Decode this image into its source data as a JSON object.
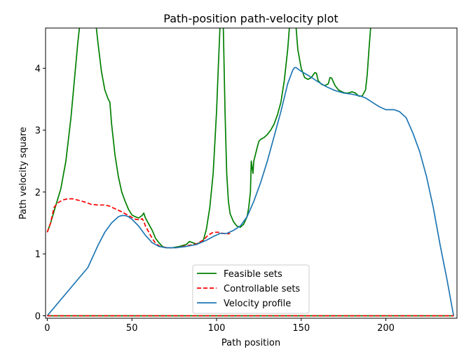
{
  "chart_data": {
    "type": "line",
    "title": "Path-position path-velocity plot",
    "xlabel": "Path position",
    "ylabel": "Path velocity square",
    "xlim": [
      -1,
      242
    ],
    "ylim": [
      -0.04,
      4.65
    ],
    "xticks": [
      0,
      50,
      100,
      150,
      200
    ],
    "yticks": [
      0,
      1,
      2,
      3,
      4
    ],
    "grid": false,
    "legend_position": "bottom-center",
    "series": [
      {
        "name": "Feasible sets",
        "color": "#008000",
        "dash": "solid",
        "segments": [
          [
            [
              0,
              1.35
            ],
            [
              2,
              1.5
            ],
            [
              5,
              1.78
            ],
            [
              8,
              2.05
            ],
            [
              11,
              2.5
            ],
            [
              14,
              3.2
            ],
            [
              16,
              3.8
            ],
            [
              18,
              4.4
            ],
            [
              19,
              4.65
            ]
          ],
          [
            [
              29,
              4.65
            ],
            [
              30,
              4.4
            ],
            [
              32,
              3.95
            ],
            [
              34,
              3.65
            ],
            [
              36,
              3.5
            ],
            [
              37,
              3.45
            ],
            [
              38,
              3.1
            ],
            [
              40,
              2.6
            ],
            [
              42,
              2.25
            ],
            [
              44,
              2.0
            ],
            [
              46,
              1.85
            ],
            [
              48,
              1.72
            ],
            [
              50,
              1.63
            ],
            [
              52,
              1.6
            ],
            [
              54,
              1.58
            ],
            [
              56,
              1.62
            ],
            [
              57,
              1.66
            ],
            [
              58,
              1.58
            ],
            [
              60,
              1.48
            ],
            [
              62,
              1.38
            ],
            [
              64,
              1.25
            ],
            [
              66,
              1.18
            ],
            [
              68,
              1.12
            ],
            [
              70,
              1.1
            ],
            [
              74,
              1.1
            ],
            [
              78,
              1.12
            ],
            [
              82,
              1.15
            ],
            [
              84,
              1.2
            ],
            [
              86,
              1.18
            ],
            [
              88,
              1.16
            ],
            [
              92,
              1.2
            ],
            [
              94,
              1.4
            ],
            [
              96,
              1.75
            ],
            [
              98,
              2.3
            ],
            [
              100,
              3.3
            ],
            [
              101,
              4.0
            ],
            [
              102,
              4.65
            ]
          ],
          [
            [
              104,
              4.65
            ],
            [
              105,
              3.3
            ],
            [
              106,
              2.3
            ],
            [
              107,
              1.85
            ],
            [
              108,
              1.65
            ],
            [
              110,
              1.52
            ],
            [
              112,
              1.45
            ],
            [
              114,
              1.43
            ],
            [
              116,
              1.48
            ],
            [
              118,
              1.6
            ],
            [
              119,
              1.75
            ],
            [
              120,
              2.0
            ],
            [
              120.5,
              2.5
            ],
            [
              121.5,
              2.3
            ],
            [
              122,
              2.5
            ],
            [
              124,
              2.72
            ],
            [
              125,
              2.82
            ],
            [
              126,
              2.85
            ],
            [
              128,
              2.88
            ],
            [
              130,
              2.93
            ],
            [
              132,
              3.0
            ],
            [
              134,
              3.1
            ],
            [
              136,
              3.25
            ],
            [
              138,
              3.45
            ],
            [
              140,
              3.8
            ],
            [
              142,
              4.3
            ],
            [
              143,
              4.65
            ]
          ],
          [
            [
              147,
              4.65
            ],
            [
              148,
              4.3
            ],
            [
              150,
              4.0
            ],
            [
              152,
              3.85
            ],
            [
              154,
              3.82
            ],
            [
              156,
              3.85
            ],
            [
              158,
              3.93
            ],
            [
              159,
              3.92
            ],
            [
              160,
              3.8
            ],
            [
              162,
              3.74
            ],
            [
              164,
              3.72
            ],
            [
              166,
              3.75
            ],
            [
              167,
              3.85
            ],
            [
              168,
              3.84
            ],
            [
              170,
              3.72
            ],
            [
              172,
              3.65
            ],
            [
              174,
              3.62
            ],
            [
              176,
              3.6
            ],
            [
              178,
              3.6
            ],
            [
              180,
              3.62
            ],
            [
              182,
              3.6
            ],
            [
              184,
              3.55
            ],
            [
              186,
              3.55
            ],
            [
              188,
              3.65
            ],
            [
              189,
              3.9
            ],
            [
              190,
              4.3
            ],
            [
              191,
              4.65
            ]
          ]
        ]
      },
      {
        "name": "Controllable sets",
        "color": "#ff0000",
        "dash": "dashed",
        "segments": [
          [
            [
              0,
              1.35
            ],
            [
              2,
              1.5
            ],
            [
              4,
              1.75
            ],
            [
              6,
              1.82
            ],
            [
              9,
              1.87
            ],
            [
              12,
              1.89
            ],
            [
              15,
              1.89
            ],
            [
              18,
              1.87
            ],
            [
              22,
              1.84
            ],
            [
              26,
              1.8
            ],
            [
              30,
              1.79
            ],
            [
              34,
              1.79
            ],
            [
              37,
              1.77
            ],
            [
              40,
              1.73
            ],
            [
              44,
              1.68
            ],
            [
              48,
              1.62
            ],
            [
              52,
              1.56
            ],
            [
              55,
              1.55
            ],
            [
              56,
              1.57
            ],
            [
              57,
              1.53
            ],
            [
              58,
              1.45
            ],
            [
              60,
              1.35
            ],
            [
              62,
              1.25
            ],
            [
              64,
              1.17
            ],
            [
              66,
              1.13
            ],
            [
              68,
              1.11
            ],
            [
              72,
              1.1
            ],
            [
              76,
              1.1
            ],
            [
              80,
              1.12
            ],
            [
              84,
              1.14
            ],
            [
              88,
              1.16
            ],
            [
              92,
              1.22
            ],
            [
              95,
              1.3
            ],
            [
              98,
              1.35
            ],
            [
              101,
              1.35
            ],
            [
              104,
              1.33
            ],
            [
              106,
              1.32
            ],
            [
              108,
              1.33
            ]
          ]
        ]
      },
      {
        "name": "Velocity profile",
        "color": "#1f77b4",
        "dash": "solid",
        "segments": [
          [
            [
              0,
              0
            ],
            [
              24,
              0.78
            ],
            [
              26,
              0.9
            ],
            [
              28,
              1.02
            ],
            [
              30,
              1.14
            ],
            [
              34,
              1.35
            ],
            [
              38,
              1.5
            ],
            [
              42,
              1.6
            ],
            [
              44,
              1.62
            ],
            [
              46,
              1.62
            ],
            [
              48,
              1.6
            ],
            [
              50,
              1.56
            ],
            [
              54,
              1.45
            ],
            [
              58,
              1.3
            ],
            [
              62,
              1.18
            ],
            [
              66,
              1.12
            ],
            [
              70,
              1.1
            ],
            [
              76,
              1.1
            ],
            [
              82,
              1.12
            ],
            [
              88,
              1.15
            ],
            [
              94,
              1.22
            ],
            [
              98,
              1.28
            ],
            [
              102,
              1.33
            ],
            [
              106,
              1.33
            ],
            [
              110,
              1.38
            ],
            [
              114,
              1.45
            ],
            [
              118,
              1.6
            ],
            [
              122,
              1.85
            ],
            [
              126,
              2.15
            ],
            [
              130,
              2.5
            ],
            [
              134,
              2.9
            ],
            [
              138,
              3.3
            ],
            [
              142,
              3.75
            ],
            [
              145,
              3.97
            ],
            [
              146,
              4.01
            ],
            [
              147,
              4.01
            ],
            [
              150,
              3.95
            ],
            [
              155,
              3.87
            ],
            [
              160,
              3.78
            ],
            [
              165,
              3.7
            ],
            [
              170,
              3.64
            ],
            [
              175,
              3.6
            ],
            [
              180,
              3.58
            ],
            [
              185,
              3.55
            ],
            [
              188,
              3.52
            ],
            [
              192,
              3.45
            ],
            [
              196,
              3.38
            ],
            [
              200,
              3.33
            ],
            [
              205,
              3.33
            ],
            [
              208,
              3.3
            ],
            [
              212,
              3.2
            ],
            [
              216,
              2.95
            ],
            [
              220,
              2.65
            ],
            [
              224,
              2.25
            ],
            [
              228,
              1.75
            ],
            [
              232,
              1.15
            ],
            [
              236,
              0.6
            ],
            [
              240,
              0
            ]
          ]
        ]
      },
      {
        "name": "",
        "color": "#008000",
        "dash": "solid",
        "segments": [
          [
            [
              0,
              0
            ],
            [
              240,
              0
            ]
          ]
        ]
      },
      {
        "name": "",
        "color": "#ff0000",
        "dash": "dashed",
        "segments": [
          [
            [
              0,
              0
            ],
            [
              240,
              0
            ]
          ]
        ]
      }
    ]
  }
}
